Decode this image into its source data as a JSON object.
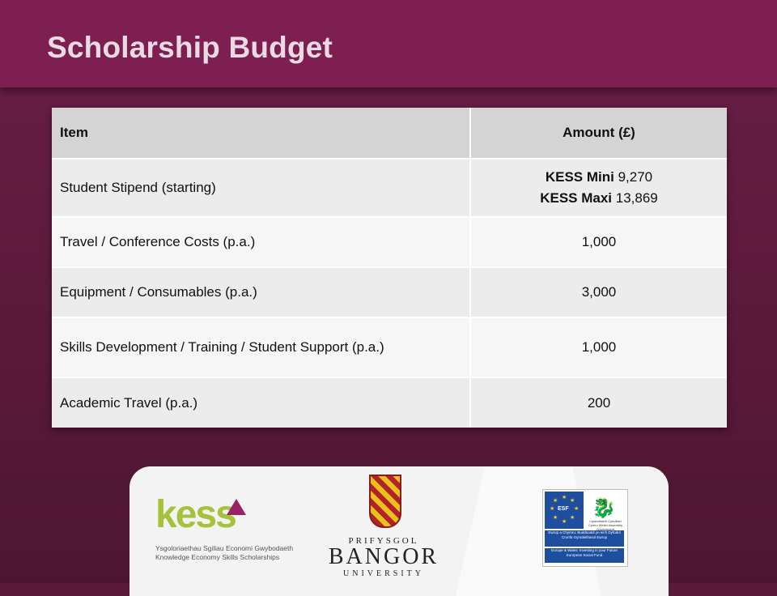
{
  "slide": {
    "title": "Scholarship Budget",
    "colors": {
      "header": "#7e1f52",
      "background": "#5a1a3c",
      "kess_green": "#a5c23a",
      "kess_accent": "#9a2263"
    }
  },
  "table": {
    "headers": {
      "item": "Item",
      "amount": "Amount (£)"
    },
    "rows": [
      {
        "item": "Student Stipend (starting)",
        "amount_lines": [
          {
            "label": "KESS Mini",
            "value": "9,270"
          },
          {
            "label": "KESS Maxi",
            "value": "13,869"
          }
        ]
      },
      {
        "item": "Travel / Conference Costs (p.a.)",
        "amount": "1,000"
      },
      {
        "item": "Equipment / Consumables (p.a.)",
        "amount": "3,000"
      },
      {
        "item": "Skills Development / Training / Student Support (p.a.)",
        "amount": "1,000"
      },
      {
        "item": "Academic Travel (p.a.)",
        "amount": "200"
      }
    ]
  },
  "logos": {
    "kess": {
      "wordmark": "kess",
      "tagline_welsh": "Ysgoloriaethau Sgiliau Economi Gwybodaeth",
      "tagline_english": "Knowledge Economy Skills Scholarships",
      "accent_icon": "triangle-icon"
    },
    "bangor": {
      "line1": "PRIFYSGOL",
      "line2": "BANGOR",
      "line3": "UNIVERSITY",
      "crest_icon": "university-crest-icon"
    },
    "esf": {
      "flag_text": "ESF",
      "flag_icon": "eu-flag-icon",
      "govt_icon": "welsh-dragon-icon",
      "govt_text": "Llywodraeth Cynulliad Cymru Welsh Assembly Government",
      "band1": "Ewrop a Chymru: Buddsoddi yn eich Dyfodol Cronfa Gymdeithasol Ewrop",
      "band2": "Europe & Wales: Investing in your Future European Social Fund"
    }
  }
}
